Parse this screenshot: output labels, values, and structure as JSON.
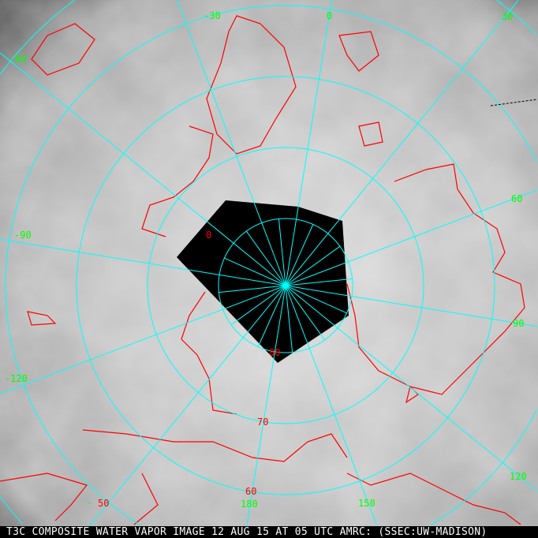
{
  "caption": "T3C COMPOSITE WATER VAPOR IMAGE 12 AUG 15 AT 05 UTC AMRC: (SSEC:UW-MADISON)",
  "colors": {
    "grid": "#00ffff",
    "coast": "#ff0000",
    "lon_labels": "#00ff00",
    "lat_labels": "#ff0000"
  },
  "longitude_labels": [
    "-30",
    "0",
    "30",
    "-60",
    "60",
    "-90",
    "90",
    "-120",
    "120",
    "180",
    "150"
  ],
  "latitude_labels": [
    "80",
    "70",
    "60",
    "50"
  ],
  "extra_labels": {
    "inner_zero": "0",
    "dash": "-"
  },
  "image_type": "polar stereographic water vapor composite, grayscale"
}
